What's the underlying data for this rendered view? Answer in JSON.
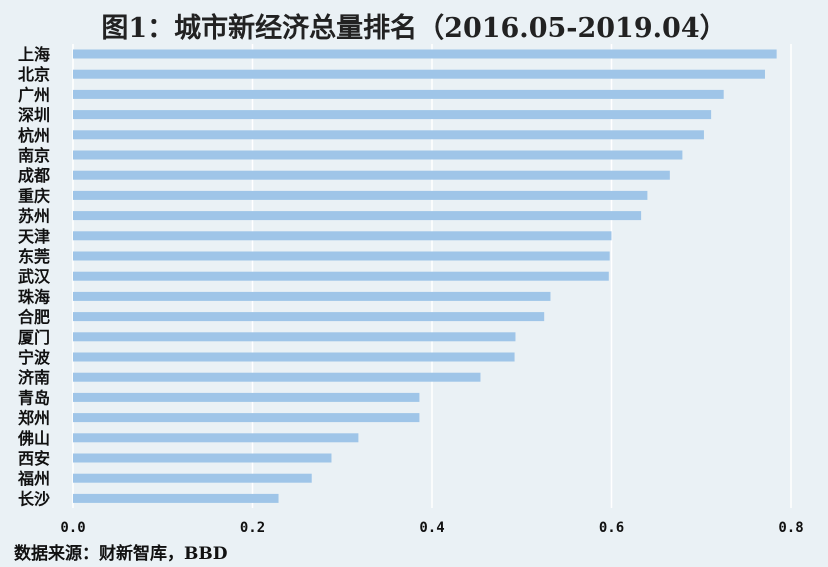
{
  "title": "图1：城市新经济总量排名（2016.05-2019.04）",
  "source": "数据来源：财新智库，BBD",
  "colors": {
    "background": "#eaf1f5",
    "bar": "#9fc5e8",
    "grid": "#ffffff"
  },
  "chart_data": {
    "type": "bar",
    "orientation": "horizontal",
    "title": "图1：城市新经济总量排名（2016.05-2019.04）",
    "xlabel": "",
    "ylabel": "",
    "grid": true,
    "xlim": [
      0,
      0.8
    ],
    "xticks": [
      "0.0",
      "0.2",
      "0.4",
      "0.6",
      "0.8"
    ],
    "categories": [
      "上海",
      "北京",
      "广州",
      "深圳",
      "杭州",
      "南京",
      "成都",
      "重庆",
      "苏州",
      "天津",
      "东莞",
      "武汉",
      "珠海",
      "合肥",
      "厦门",
      "宁波",
      "济南",
      "青岛",
      "郑州",
      "佛山",
      "西安",
      "福州",
      "长沙"
    ],
    "values": [
      0.784,
      0.771,
      0.725,
      0.711,
      0.703,
      0.679,
      0.665,
      0.64,
      0.633,
      0.6,
      0.598,
      0.597,
      0.532,
      0.525,
      0.493,
      0.492,
      0.454,
      0.386,
      0.386,
      0.318,
      0.288,
      0.266,
      0.229
    ]
  }
}
